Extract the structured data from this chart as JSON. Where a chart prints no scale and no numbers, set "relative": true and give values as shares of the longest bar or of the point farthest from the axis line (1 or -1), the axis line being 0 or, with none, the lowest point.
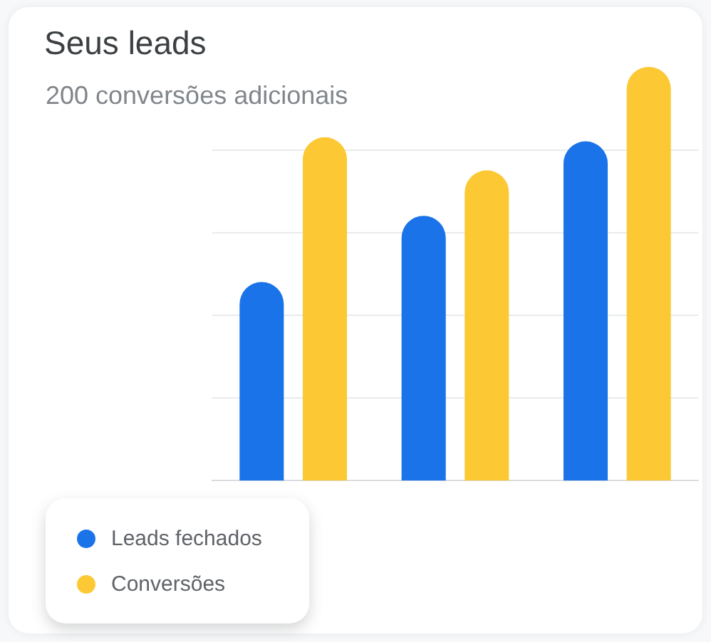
{
  "chart_data": {
    "type": "bar",
    "title": "Seus leads",
    "subtitle": "200 conversões adicionais",
    "categories": [
      null,
      null,
      null
    ],
    "series": [
      {
        "name": "Leads fechados",
        "color": "#1a73e8",
        "values": [
          0.48,
          0.64,
          0.82
        ]
      },
      {
        "name": "Conversões",
        "color": "#fcc934",
        "values": [
          0.83,
          0.75,
          1
        ]
      }
    ],
    "relative": true,
    "grid": "y",
    "legend": "bottom left"
  }
}
